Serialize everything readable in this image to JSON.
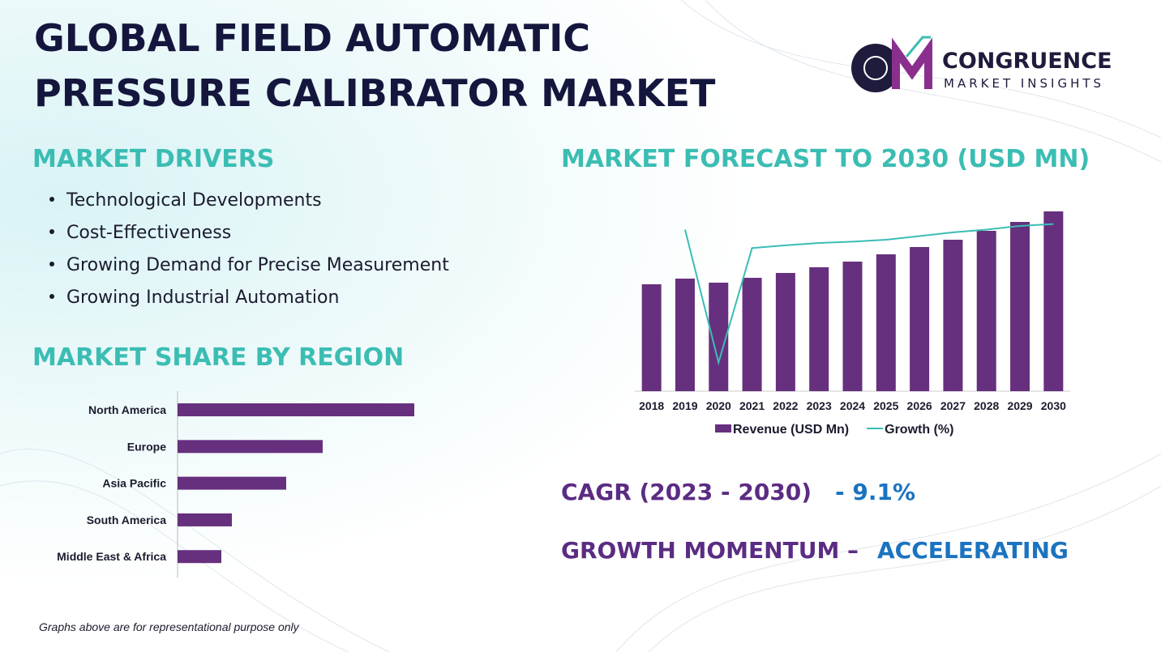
{
  "header": {
    "title_line1": "GLOBAL FIELD AUTOMATIC",
    "title_line2": "PRESSURE CALIBRATOR MARKET"
  },
  "logo": {
    "name": "CONGRUENCE",
    "tagline": "MARKET INSIGHTS"
  },
  "drivers": {
    "heading": "MARKET DRIVERS",
    "items": [
      "Technological Developments",
      "Cost-Effectiveness",
      "Growing Demand for Precise Measurement",
      "Growing Industrial Automation"
    ]
  },
  "region_heading": "MARKET SHARE BY REGION",
  "forecast_heading": "MARKET FORECAST TO 2030 (USD MN)",
  "cagr": {
    "label": "CAGR (2023 - 2030)",
    "value": "- 9.1%"
  },
  "momentum": {
    "label": "GROWTH MOMENTUM –",
    "value": "ACCELERATING"
  },
  "footnote": "Graphs above are for representational purpose only",
  "chart_data": [
    {
      "type": "hbar",
      "categories": [
        "North America",
        "Europe",
        "Asia Pacific",
        "South America",
        "Middle East & Africa"
      ],
      "values": [
        292,
        179,
        134,
        67,
        54
      ],
      "color": "#66307e",
      "xlim": [
        0,
        300
      ]
    },
    {
      "type": "bar_line",
      "categories": [
        "2018",
        "2019",
        "2020",
        "2021",
        "2022",
        "2023",
        "2024",
        "2025",
        "2026",
        "2027",
        "2028",
        "2029",
        "2030"
      ],
      "series": [
        {
          "name": "Revenue (USD Mn)",
          "color": "#66307e",
          "values": [
            132,
            139,
            134,
            140,
            146,
            153,
            160,
            169,
            178,
            187,
            198,
            209,
            222
          ]
        },
        {
          "name": "Growth (%)",
          "color": "#3bbdb3",
          "axis": "y2",
          "values": [
            null,
            7.5,
            -6.9,
            5.5,
            5.8,
            6.05,
            6.2,
            6.4,
            6.8,
            7.2,
            7.5,
            7.9,
            8.1
          ]
        }
      ],
      "ylim": [
        0,
        228
      ],
      "y2lim": [
        -10,
        10
      ]
    }
  ]
}
